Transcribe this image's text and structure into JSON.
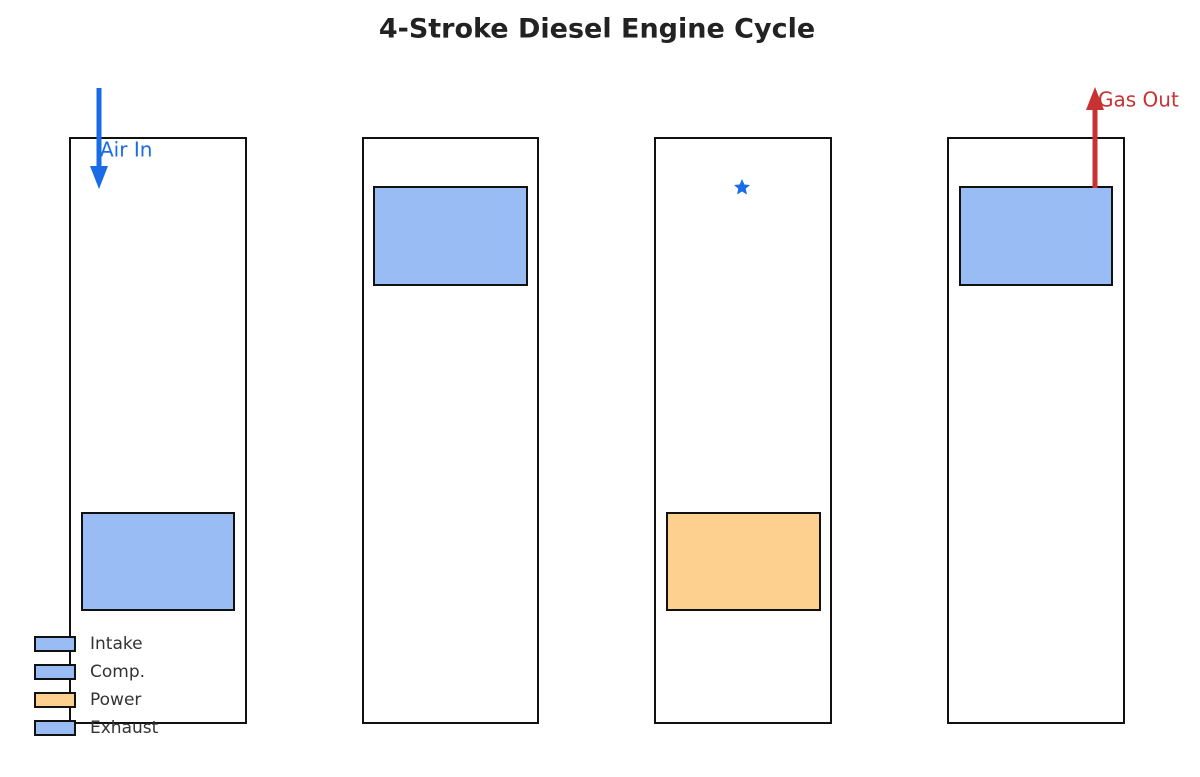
{
  "title": "4-Stroke Diesel Engine Cycle",
  "annotations": {
    "air_in": "Air In",
    "gas_out": "Gas Out"
  },
  "legend": [
    {
      "label": "Intake",
      "color": "#9abcf5"
    },
    {
      "label": "Comp.",
      "color": "#9abcf5"
    },
    {
      "label": "Power",
      "color": "#fdd08f"
    },
    {
      "label": "Exhaust",
      "color": "#9abcf5"
    }
  ]
}
